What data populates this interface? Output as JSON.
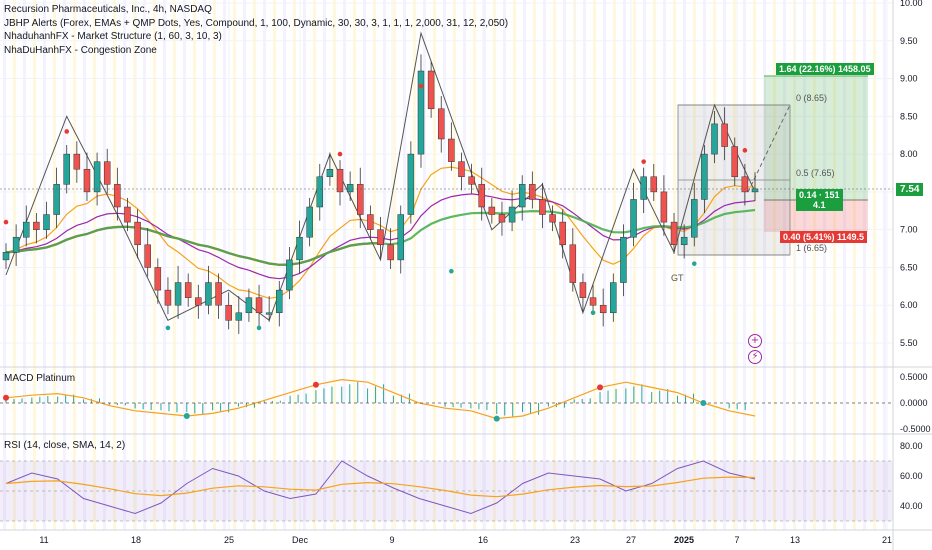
{
  "legend": {
    "title": "Recursion Pharmaceuticals, Inc., 4h, NASDAQ",
    "indicators": [
      "JBHP Alerts (Forex, EMAs + QMP Dots, Yes, Compound, 1, 100, Dynamic, 30, 30, 3, 1, 1, 1, 2,000, 31, 12, 2,050)",
      "NhaduhanhFX - Market Structure (1, 60, 3, 10, 3)",
      "NhaDuHanhFX - Congestion Zone"
    ]
  },
  "price_axis": [
    "10.00",
    "9.50",
    "9.00",
    "8.50",
    "8.00",
    "7.50",
    "7.00",
    "6.50",
    "6.00",
    "5.50"
  ],
  "macd": {
    "title": "MACD Platinum",
    "axis": [
      "0.5000",
      "0.0000",
      "-0.5000"
    ]
  },
  "rsi": {
    "title": "RSI (14, close, SMA, 14, 2)",
    "axis": [
      "80.00",
      "60.00",
      "40.00"
    ]
  },
  "time_axis": [
    "11",
    "18",
    "25",
    "Dec",
    "9",
    "16",
    "23",
    "27",
    "2025",
    "7",
    "13",
    "21"
  ],
  "tags": {
    "current_price": "7.54",
    "target": "1.64 (22.16%) 1458.05",
    "position_top": "0.14 · 151",
    "position_bottom": "4.1",
    "stop": "0.40 (5.41%) 1149.5"
  },
  "fib": {
    "f0": "0 (8.65)",
    "f05": "0.5 (7.65)",
    "f1": "1 (6.65)",
    "gt": "GT"
  },
  "icons": [
    "plus-circle-icon",
    "lightning-icon"
  ],
  "colors": {
    "up": "#26a69a",
    "down": "#ef5350",
    "ema_fast": "#f7a21b",
    "ema_slow": "#9c27b0",
    "ema_green": "#4caf50",
    "ema_red": "#c62828"
  },
  "chart_data": {
    "type": "candlestick",
    "title": "Recursion Pharmaceuticals, Inc., 4h, NASDAQ",
    "ylim": [
      5.2,
      10.0
    ],
    "close_series": [
      6.7,
      6.9,
      7.1,
      7.0,
      7.2,
      7.6,
      8.0,
      7.8,
      7.5,
      7.9,
      7.6,
      7.3,
      7.1,
      6.8,
      6.5,
      6.2,
      6.0,
      6.3,
      6.1,
      6.0,
      6.3,
      6.0,
      5.8,
      5.9,
      6.1,
      5.9,
      5.9,
      6.2,
      6.6,
      6.9,
      7.3,
      7.7,
      7.8,
      7.5,
      7.6,
      7.2,
      7.0,
      6.8,
      6.6,
      7.2,
      8.0,
      9.1,
      8.6,
      8.2,
      7.9,
      7.7,
      7.6,
      7.3,
      7.2,
      7.1,
      7.3,
      7.6,
      7.4,
      7.2,
      7.1,
      6.8,
      6.3,
      6.1,
      6.0,
      5.9,
      6.3,
      6.9,
      7.4,
      7.7,
      7.5,
      7.1,
      6.8,
      6.9,
      7.4,
      8.0,
      8.4,
      8.1,
      7.7,
      7.5,
      7.54
    ],
    "macd_line": [
      0.1,
      0.15,
      0.18,
      0.1,
      -0.05,
      -0.15,
      -0.2,
      -0.25,
      -0.2,
      -0.1,
      0.05,
      0.2,
      0.35,
      0.45,
      0.4,
      0.2,
      0.0,
      -0.1,
      -0.15,
      -0.3,
      -0.25,
      -0.1,
      0.1,
      0.3,
      0.4,
      0.3,
      0.2,
      0.0,
      -0.15,
      -0.25
    ],
    "rsi_line": [
      55,
      62,
      58,
      45,
      40,
      35,
      42,
      55,
      65,
      60,
      50,
      45,
      48,
      70,
      60,
      52,
      45,
      40,
      35,
      42,
      55,
      62,
      60,
      58,
      50,
      55,
      65,
      70,
      62,
      58
    ]
  }
}
